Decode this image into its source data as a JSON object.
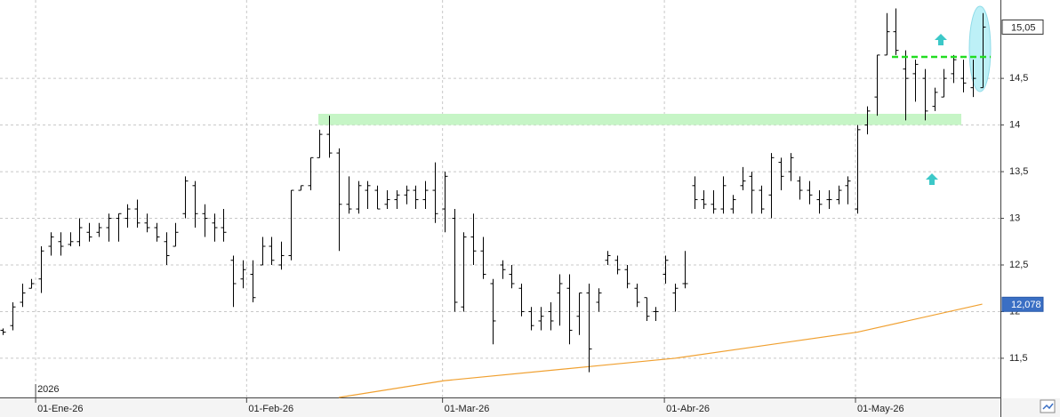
{
  "chart_data": {
    "type": "ohlc",
    "bar_color": "#000000",
    "open": [
      11.8,
      11.85,
      12.1,
      12.25,
      12.35,
      12.7,
      12.75,
      12.72,
      12.75,
      12.85,
      12.85,
      12.9,
      13.0,
      13.0,
      13.1,
      12.95,
      12.9,
      12.75,
      12.7,
      13.05,
      13.35,
      13.05,
      12.95,
      12.9,
      12.55,
      12.35,
      12.4,
      12.5,
      12.7,
      12.5,
      12.6,
      13.3,
      13.35,
      13.65,
      13.9,
      13.7,
      13.15,
      13.1,
      13.3,
      13.3,
      13.15,
      13.2,
      13.25,
      13.3,
      13.2,
      13.3,
      13.1,
      13.0,
      12.05,
      12.8,
      12.65,
      12.3,
      12.5,
      12.4,
      12.25,
      12.0,
      11.9,
      12.0,
      12.2,
      12.25,
      11.95,
      12.2,
      12.1,
      12.55,
      12.55,
      12.45,
      12.25,
      12.15,
      12.0,
      12.4,
      12.2,
      12.3,
      13.35,
      13.2,
      13.15,
      13.1,
      13.1,
      13.35,
      13.45,
      13.3,
      13.25,
      13.6,
      13.5,
      13.4,
      13.3,
      13.2,
      13.2,
      13.2,
      13.35,
      13.1,
      14.0,
      14.3,
      14.75,
      15.0,
      14.6,
      14.55,
      14.5,
      14.2,
      14.3,
      14.55,
      14.5,
      14.4,
      14.4
    ],
    "high": [
      11.82,
      12.1,
      12.3,
      12.35,
      12.7,
      12.85,
      12.85,
      12.85,
      13.0,
      12.95,
      12.95,
      13.05,
      13.05,
      13.15,
      13.2,
      13.05,
      12.95,
      12.85,
      12.95,
      13.45,
      13.4,
      13.15,
      13.05,
      13.1,
      12.6,
      12.55,
      12.55,
      12.8,
      12.8,
      12.75,
      13.3,
      13.35,
      13.65,
      13.95,
      14.1,
      13.75,
      13.45,
      13.4,
      13.4,
      13.35,
      13.3,
      13.3,
      13.35,
      13.35,
      13.4,
      13.6,
      13.5,
      13.1,
      12.85,
      13.05,
      12.8,
      12.35,
      12.55,
      12.5,
      12.3,
      12.05,
      12.05,
      12.1,
      12.4,
      12.4,
      12.2,
      12.3,
      12.25,
      12.65,
      12.6,
      12.5,
      12.3,
      12.15,
      12.05,
      12.6,
      12.3,
      12.65,
      13.45,
      13.3,
      13.3,
      13.45,
      13.25,
      13.55,
      13.5,
      13.35,
      13.7,
      13.65,
      13.7,
      13.45,
      13.4,
      13.3,
      13.3,
      13.35,
      13.45,
      14.0,
      14.2,
      14.75,
      15.2,
      15.25,
      14.8,
      14.7,
      14.6,
      14.4,
      14.6,
      14.75,
      14.7,
      14.7,
      15.2
    ],
    "low": [
      11.75,
      11.8,
      12.05,
      12.25,
      12.2,
      12.6,
      12.6,
      12.7,
      12.7,
      12.75,
      12.8,
      12.75,
      12.75,
      12.9,
      12.9,
      12.85,
      12.75,
      12.5,
      12.7,
      13.0,
      12.9,
      12.8,
      12.75,
      12.75,
      12.05,
      12.25,
      12.1,
      12.5,
      12.5,
      12.45,
      12.55,
      13.3,
      13.3,
      13.65,
      13.65,
      12.65,
      13.05,
      13.05,
      13.1,
      13.1,
      13.1,
      13.1,
      13.15,
      13.1,
      13.1,
      12.95,
      12.85,
      12.0,
      12.0,
      12.5,
      12.35,
      11.65,
      12.35,
      12.25,
      11.95,
      11.8,
      11.8,
      11.8,
      11.85,
      11.65,
      11.75,
      11.35,
      12.0,
      12.5,
      12.4,
      12.25,
      12.05,
      11.9,
      11.9,
      12.3,
      12.0,
      12.25,
      13.1,
      13.1,
      13.05,
      13.05,
      13.05,
      13.3,
      13.05,
      13.05,
      13.0,
      13.3,
      13.4,
      13.2,
      13.15,
      13.05,
      13.1,
      13.15,
      13.15,
      13.05,
      13.9,
      14.1,
      14.75,
      14.75,
      14.05,
      14.25,
      14.05,
      14.15,
      14.3,
      14.45,
      14.35,
      14.3,
      14.4
    ],
    "close": [
      11.78,
      12.05,
      12.2,
      12.3,
      12.65,
      12.8,
      12.7,
      12.75,
      12.9,
      12.8,
      12.9,
      13.0,
      13.05,
      13.1,
      12.95,
      12.9,
      12.8,
      12.6,
      12.85,
      13.4,
      13.05,
      13.0,
      12.9,
      12.85,
      12.3,
      12.45,
      12.15,
      12.7,
      12.55,
      12.6,
      13.3,
      13.35,
      13.65,
      13.9,
      13.7,
      13.15,
      13.1,
      13.35,
      13.35,
      13.1,
      13.2,
      13.25,
      13.3,
      13.2,
      13.3,
      13.05,
      13.45,
      12.1,
      12.8,
      12.65,
      12.4,
      11.9,
      12.45,
      12.3,
      12.0,
      11.85,
      11.95,
      11.9,
      12.3,
      11.8,
      12.2,
      11.6,
      12.2,
      12.6,
      12.45,
      12.3,
      12.1,
      11.95,
      12.0,
      12.55,
      12.25,
      12.3,
      13.2,
      13.15,
      13.1,
      13.35,
      13.2,
      13.4,
      13.3,
      13.1,
      13.65,
      13.45,
      13.65,
      13.3,
      13.25,
      13.15,
      13.2,
      13.3,
      13.4,
      13.95,
      14.15,
      14.75,
      15.0,
      14.8,
      14.5,
      14.65,
      14.15,
      14.35,
      14.5,
      14.7,
      14.45,
      14.5,
      15.05
    ],
    "moving_average": {
      "color": "#f0a030",
      "x": [
        35,
        46,
        62,
        70,
        89,
        102
      ],
      "values": [
        11.08,
        11.26,
        11.42,
        11.5,
        11.78,
        12.08
      ]
    },
    "xlim": [
      -0.28,
      103.89
    ],
    "ylim": [
      11.08,
      15.34
    ],
    "xticks": [
      {
        "value": 3.43,
        "label": "01-Ene-26"
      },
      {
        "value": 25.4,
        "label": "01-Feb-26"
      },
      {
        "value": 45.8,
        "label": "01-Mar-26"
      },
      {
        "value": 68.9,
        "label": "01-Abr-26"
      },
      {
        "value": 88.8,
        "label": "01-May-26"
      }
    ],
    "yticks": [
      {
        "value": 11.5,
        "label": "11,5"
      },
      12,
      {
        "value": 12.5,
        "label": "12,5"
      },
      13,
      {
        "value": 13.5,
        "label": "13,5"
      },
      14,
      {
        "value": 14.5,
        "label": "14,5"
      }
    ],
    "year_label": "2026",
    "grid": true,
    "resistance_band": [
      14.0,
      14.12
    ],
    "resistance_line": 14.73,
    "price_labels": [
      {
        "value": 15.05,
        "label": "15,05"
      },
      {
        "value": 12.078,
        "label": "12,078"
      }
    ]
  }
}
